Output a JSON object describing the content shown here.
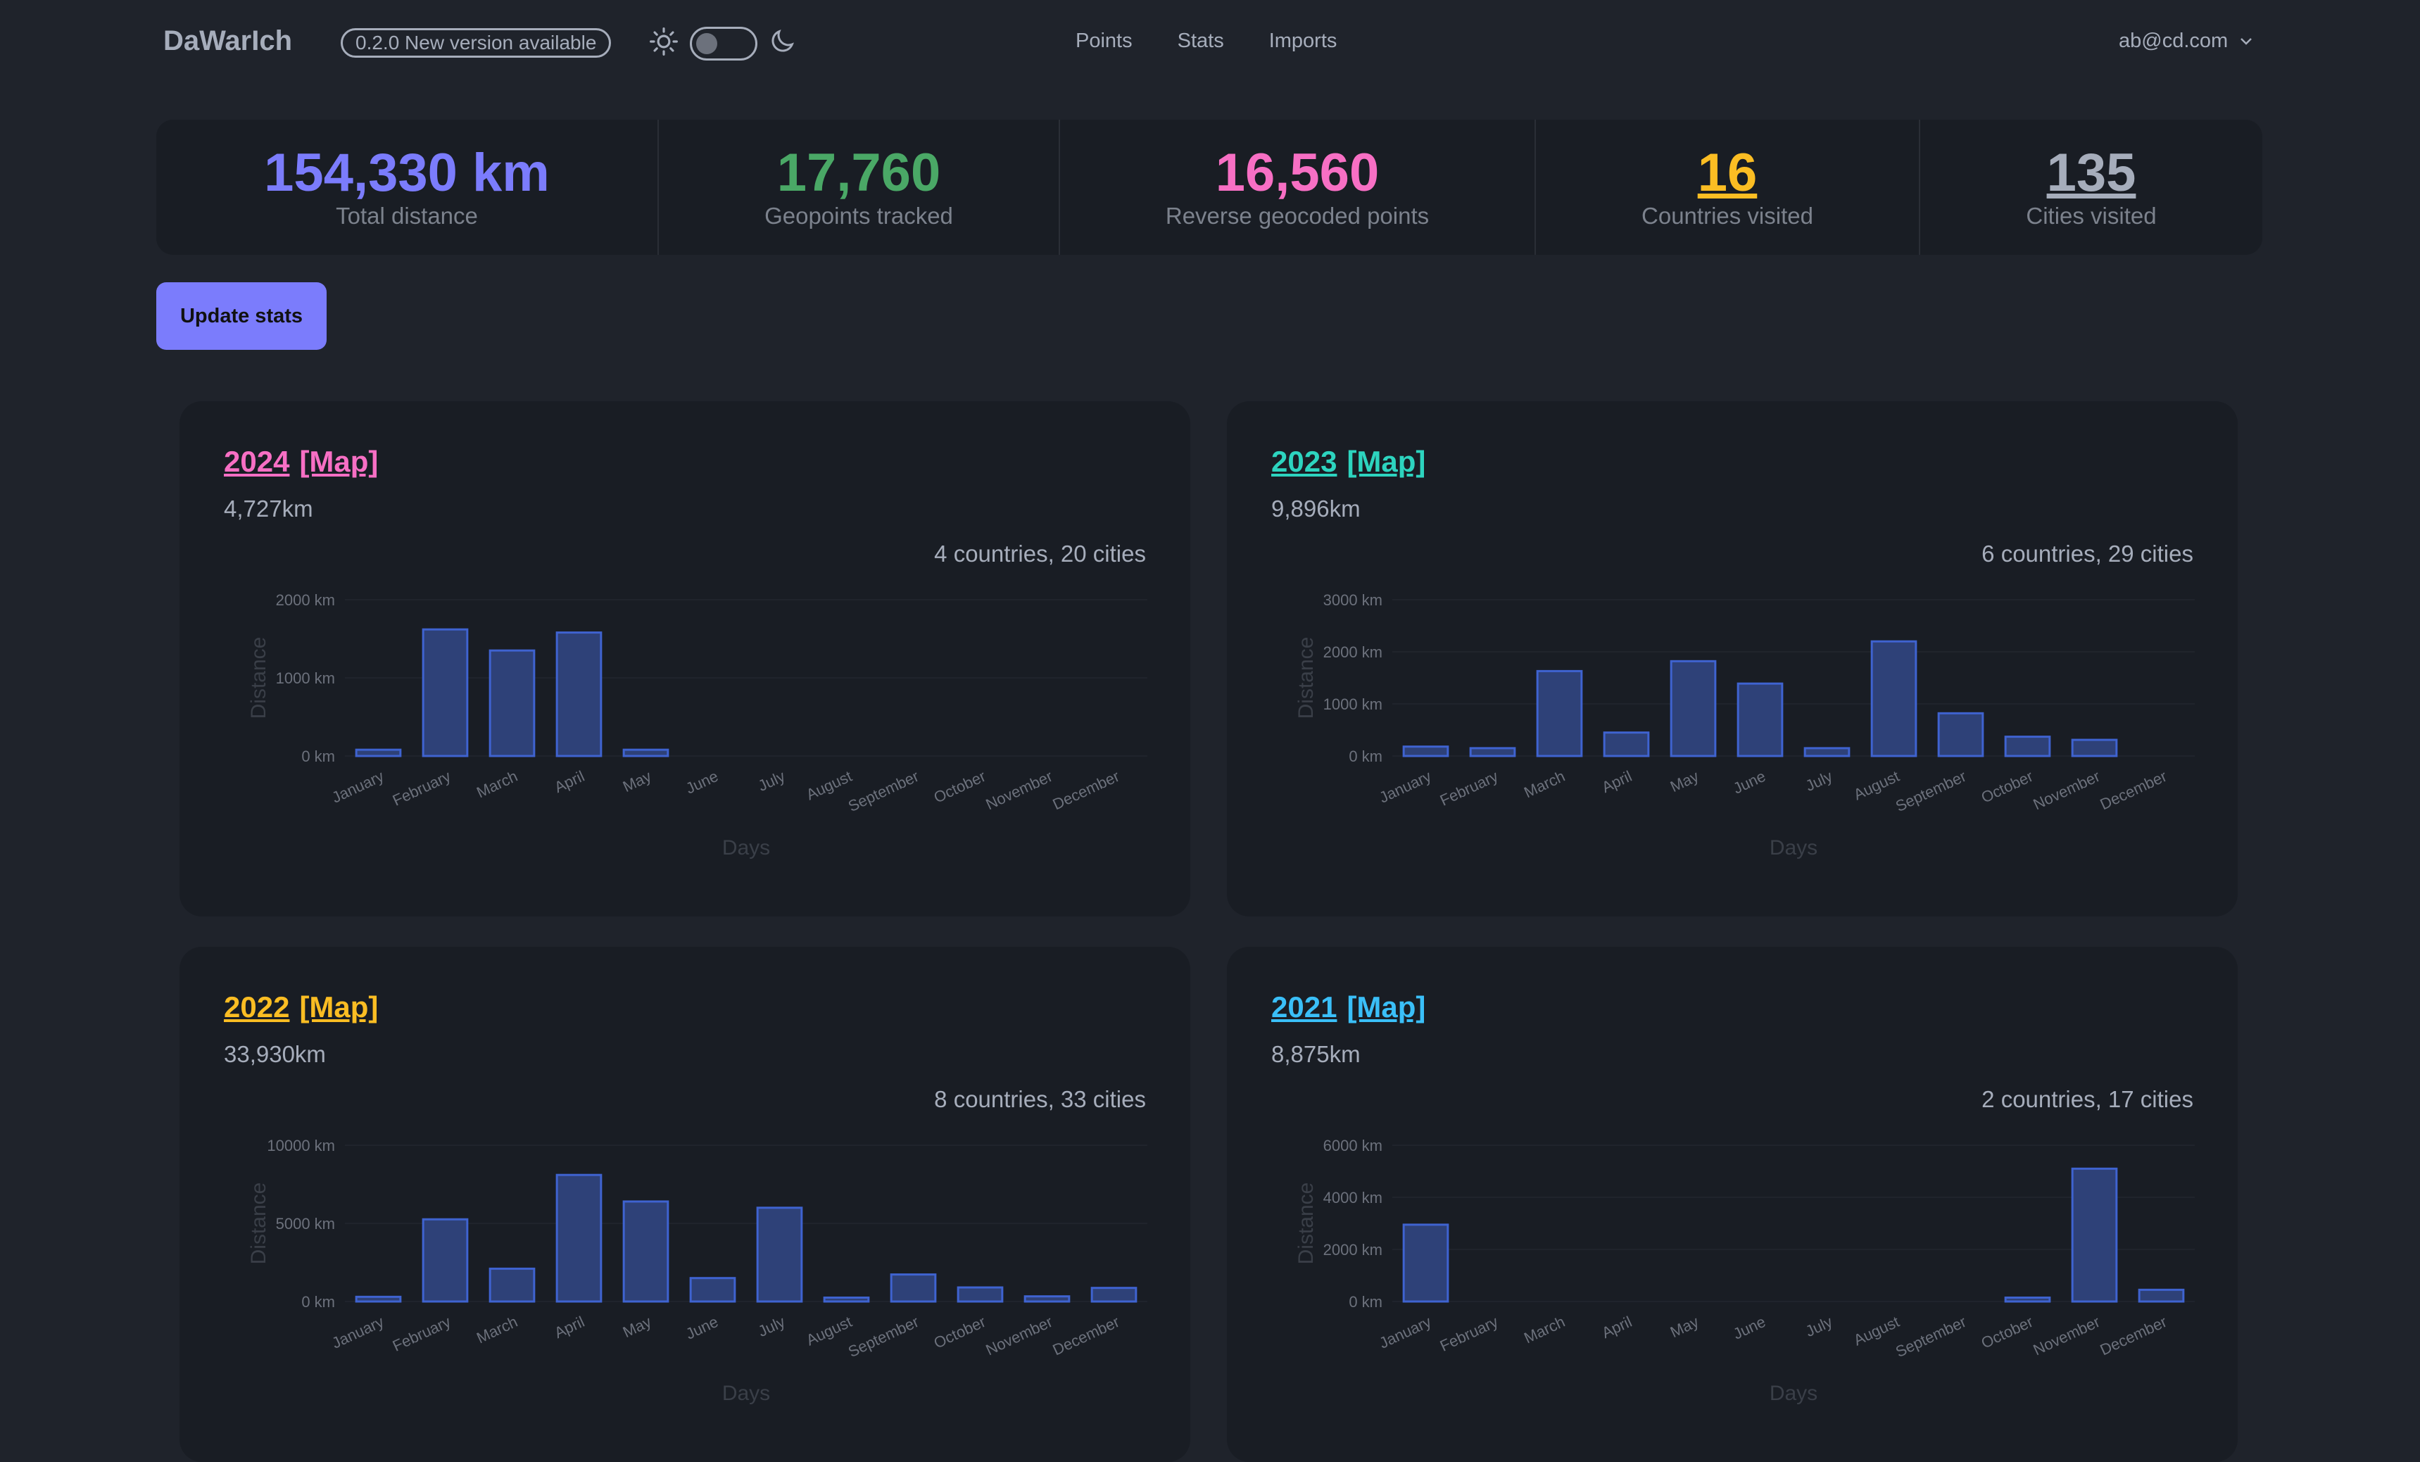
{
  "header": {
    "logo": "DaWarIch",
    "version_badge": "0.2.0  New version available",
    "nav": [
      "Points",
      "Stats",
      "Imports"
    ],
    "user": "ab@cd.com",
    "icons": [
      "sun-icon",
      "theme-toggle",
      "moon-icon",
      "chevron-down-icon"
    ],
    "theme_dark": false
  },
  "stats": [
    {
      "value": "154,330 km",
      "label": "Total distance",
      "color": "#7b7cfc"
    },
    {
      "value": "17,760",
      "label": "Geopoints tracked",
      "color": "#4aa866"
    },
    {
      "value": "16,560",
      "label": "Reverse geocoded points",
      "color": "#f76fc4"
    },
    {
      "value": "16",
      "label": "Countries visited",
      "color": "#fbbd23"
    },
    {
      "value": "135",
      "label": "Cities visited",
      "color": "#a6adbb"
    }
  ],
  "update_button": "Update stats",
  "years": [
    {
      "year": "2024",
      "map": "[Map]",
      "distance": "4,727km",
      "places": "4 countries, 20 cities",
      "color": "#f76fc4"
    },
    {
      "year": "2023",
      "map": "[Map]",
      "distance": "9,896km",
      "places": "6 countries, 29 cities",
      "color": "#2dd4bf"
    },
    {
      "year": "2022",
      "map": "[Map]",
      "distance": "33,930km",
      "places": "8 countries, 33 cities",
      "color": "#fbbd23"
    },
    {
      "year": "2021",
      "map": "[Map]",
      "distance": "8,875km",
      "places": "2 countries, 17 cities",
      "color": "#3abff8"
    }
  ],
  "chart_data": [
    {
      "type": "bar",
      "categories": [
        "January",
        "February",
        "March",
        "April",
        "May",
        "June",
        "July",
        "August",
        "September",
        "October",
        "November",
        "December"
      ],
      "values": [
        80,
        1620,
        1350,
        1580,
        80,
        0,
        0,
        0,
        0,
        0,
        0,
        0
      ],
      "yticks": [
        "0 km",
        "1000 km",
        "2000 km"
      ],
      "ylim": [
        0,
        2000
      ],
      "xlabel": "Days",
      "ylabel": "Distance",
      "bar_color": "#3b5bb5"
    },
    {
      "type": "bar",
      "categories": [
        "January",
        "February",
        "March",
        "April",
        "May",
        "June",
        "July",
        "August",
        "September",
        "October",
        "November",
        "December"
      ],
      "values": [
        180,
        150,
        1630,
        450,
        1820,
        1390,
        150,
        2200,
        820,
        370,
        310,
        0
      ],
      "yticks": [
        "0 km",
        "1000 km",
        "2000 km",
        "3000 km"
      ],
      "ylim": [
        0,
        3000
      ],
      "xlabel": "Days",
      "ylabel": "Distance",
      "bar_color": "#3b5bb5"
    },
    {
      "type": "bar",
      "categories": [
        "January",
        "February",
        "March",
        "April",
        "May",
        "June",
        "July",
        "August",
        "September",
        "October",
        "November",
        "December"
      ],
      "values": [
        300,
        5260,
        2100,
        8100,
        6400,
        1500,
        6000,
        250,
        1730,
        900,
        330,
        870
      ],
      "yticks": [
        "0 km",
        "5000 km",
        "10000 km"
      ],
      "ylim": [
        0,
        10000
      ],
      "xlabel": "Days",
      "ylabel": "Distance",
      "bar_color": "#3b5bb5"
    },
    {
      "type": "bar",
      "categories": [
        "January",
        "February",
        "March",
        "April",
        "May",
        "June",
        "July",
        "August",
        "September",
        "October",
        "November",
        "December"
      ],
      "values": [
        2950,
        0,
        0,
        0,
        0,
        0,
        0,
        0,
        0,
        150,
        5100,
        450
      ],
      "yticks": [
        "0 km",
        "2000 km",
        "4000 km",
        "6000 km"
      ],
      "ylim": [
        0,
        6000
      ],
      "xlabel": "Days",
      "ylabel": "Distance",
      "bar_color": "#3b5bb5"
    }
  ]
}
